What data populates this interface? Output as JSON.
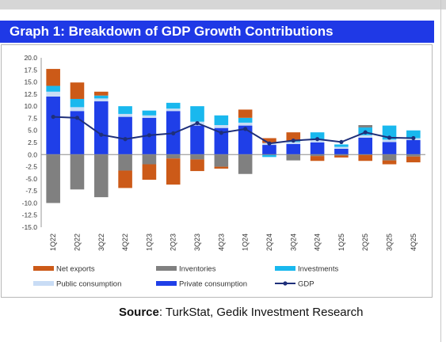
{
  "title": "Graph 1: Breakdown of GDP Growth Contributions",
  "source": {
    "label": "Source",
    "text": ": TurkStat, Gedik Investment Research"
  },
  "chart_data": {
    "type": "bar",
    "stacked": true,
    "categories": [
      "1Q22",
      "2Q22",
      "3Q22",
      "4Q22",
      "1Q23",
      "2Q23",
      "3Q23",
      "4Q23",
      "1Q24",
      "2Q24",
      "3Q24",
      "4Q24",
      "1Q25",
      "2Q25",
      "3Q25",
      "4Q25"
    ],
    "ylim": [
      -15,
      20
    ],
    "yticks": [
      -15,
      -12.5,
      -10,
      -7.5,
      -5,
      -2.5,
      0,
      2.5,
      5,
      7.5,
      10,
      12.5,
      15,
      17.5,
      20
    ],
    "ytick_labels": [
      "-15.0",
      "-12.5",
      "-10.0",
      "-7.5",
      "-5.0",
      "-2.5",
      "0.0",
      "2.5",
      "5.0",
      "7.5",
      "10.0",
      "12.5",
      "15.0",
      "17.5",
      "20.0"
    ],
    "grid": false,
    "legend_position": "bottom",
    "series": [
      {
        "name": "Private consumption",
        "kind": "bar",
        "color": "#1f3fe8",
        "values": [
          12.0,
          9.0,
          11.0,
          7.8,
          7.6,
          9.0,
          6.0,
          5.5,
          6.0,
          2.0,
          2.2,
          2.5,
          1.2,
          3.5,
          2.6,
          3.0
        ]
      },
      {
        "name": "Public consumption",
        "kind": "bar",
        "color": "#c8dcf5",
        "values": [
          1.0,
          0.8,
          0.6,
          0.6,
          0.5,
          0.5,
          0.8,
          0.6,
          0.6,
          0.4,
          0.4,
          0.5,
          0.4,
          0.5,
          0.5,
          0.4
        ]
      },
      {
        "name": "Investments",
        "kind": "bar",
        "color": "#19b8ee",
        "values": [
          1.2,
          1.7,
          0.6,
          1.6,
          1.0,
          1.2,
          3.2,
          2.0,
          1.0,
          -0.5,
          0.2,
          1.6,
          0.5,
          1.6,
          2.9,
          1.6
        ]
      },
      {
        "name": "Inventories",
        "kind": "bar",
        "color": "#808080",
        "values": [
          -10.0,
          -7.2,
          -8.8,
          -3.3,
          -2.0,
          -0.8,
          -1.0,
          -2.5,
          -4.0,
          0.0,
          -1.2,
          -0.3,
          -0.2,
          0.5,
          -1.2,
          -0.4
        ]
      },
      {
        "name": "Net exports",
        "kind": "bar",
        "color": "#cc5a18",
        "values": [
          3.5,
          3.4,
          0.8,
          -3.6,
          -3.2,
          -5.4,
          -2.4,
          -0.4,
          1.7,
          1.0,
          1.8,
          -1.0,
          -0.4,
          -1.3,
          -0.8,
          -1.2
        ]
      },
      {
        "name": "GDP",
        "kind": "line",
        "color": "#1e2f7a",
        "values": [
          7.8,
          7.6,
          4.1,
          3.2,
          4.0,
          4.4,
          6.5,
          4.5,
          5.3,
          2.3,
          2.9,
          3.2,
          2.6,
          4.6,
          3.5,
          3.4
        ]
      }
    ],
    "legend_rows": [
      [
        "Net exports",
        "Inventories",
        "Investments"
      ],
      [
        "Public consumption",
        "Private consumption",
        "GDP"
      ]
    ]
  }
}
